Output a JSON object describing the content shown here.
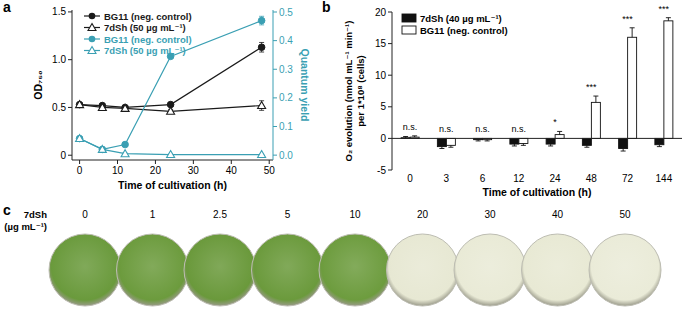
{
  "chart_data": [
    {
      "label": "a",
      "type": "line",
      "x_label": "Time of cultivation (h)",
      "y_label": "OD₇₅₀",
      "y2_label": "Quantum yield",
      "x": [
        0,
        6,
        12,
        24,
        48
      ],
      "xlim": [
        -2,
        51
      ],
      "xticks": [
        0,
        10,
        20,
        30,
        40,
        50
      ],
      "ylim": [
        -0.05,
        1.52
      ],
      "yticks": [
        0,
        0.5,
        {
          "value": 1,
          "label": "1.0"
        },
        1.5
      ],
      "y2lim": [
        -0.017,
        0.507
      ],
      "y2ticks": [
        {
          "value": 0,
          "label": "0.0"
        },
        0.1,
        0.2,
        0.3,
        0.4,
        0.5
      ],
      "legend": "upper left",
      "series": [
        {
          "name": "BG11 (neg. control)",
          "color": "#1a1a1a",
          "marker": "circle",
          "line_style": "solid",
          "values": [
            0.53,
            0.52,
            0.5,
            0.53,
            1.13
          ],
          "errors": [
            0.02,
            0.01,
            0.01,
            0.02,
            0.05
          ]
        },
        {
          "name": "7dSh (50 µg mL⁻¹)",
          "color": "#1a1a1a",
          "marker": "open-triangle",
          "line_style": "solid",
          "values": [
            0.53,
            0.5,
            0.49,
            0.46,
            0.52
          ],
          "errors": [
            0.01,
            0.01,
            0.01,
            0.02,
            0.05
          ]
        },
        {
          "name": "BG11 (neg. control)",
          "color": "#3a9fb3",
          "marker": "circle",
          "line_style": "solid",
          "axis": "y2",
          "values": [
            0.058,
            0.02,
            0.037,
            0.345,
            0.47
          ],
          "errors": [
            0.003,
            0.003,
            0.003,
            0.005,
            0.015
          ]
        },
        {
          "name": "7dSh (50 µg mL⁻¹)",
          "color": "#3a9fb3",
          "marker": "open-triangle",
          "line_style": "solid",
          "axis": "y2",
          "values": [
            0.058,
            0.02,
            0.005,
            0.002,
            0.002
          ],
          "errors": [
            0.003,
            0.003,
            0.002,
            0.001,
            0.001
          ]
        }
      ]
    },
    {
      "label": "b",
      "type": "bar",
      "x_label": "Time of cultivation (h)",
      "y_label_lines": [
        "O₂ evolution (nmol mL⁻¹ min⁻¹)",
        "per 1*10⁸ (cells)"
      ],
      "categories": [
        "0",
        "3",
        "6",
        "12",
        "24",
        "48",
        "72",
        "144"
      ],
      "ylim": [
        -5,
        20
      ],
      "yticks": [
        -5,
        0,
        5,
        10,
        15,
        20
      ],
      "legend": "upper left",
      "significance": [
        "n.s.",
        "n.s.",
        "n.s.",
        "n.s.",
        "*",
        "***",
        "***",
        "***"
      ],
      "series": [
        {
          "name": "7dSh (40 µg mL⁻¹)",
          "color": "#111111",
          "values": [
            0.1,
            -1.3,
            -0.2,
            -0.9,
            -0.9,
            -1.1,
            -1.6,
            -1.0
          ],
          "errors": [
            0.2,
            0.3,
            0.2,
            0.3,
            0.3,
            0.3,
            0.4,
            0.3
          ]
        },
        {
          "name": "BG11 (neg. control)",
          "color": "#ffffff",
          "values": [
            0.2,
            -1.1,
            -0.2,
            -0.8,
            0.6,
            5.7,
            16.0,
            18.6
          ],
          "errors": [
            0.2,
            0.3,
            0.2,
            0.3,
            0.5,
            1.0,
            1.5,
            0.5
          ]
        }
      ]
    }
  ],
  "panel_c": {
    "label": "c",
    "title_lines": [
      "7dSh",
      "(µg mL⁻¹)"
    ],
    "wells": [
      {
        "concentration": 0,
        "color": "#6a9a3c"
      },
      {
        "concentration": 1,
        "color": "#6c9b3d"
      },
      {
        "concentration": 2.5,
        "color": "#6a993b"
      },
      {
        "concentration": 5,
        "color": "#6b9a3c"
      },
      {
        "concentration": 10,
        "color": "#6d9c3e"
      },
      {
        "concentration": 20,
        "color": "#e7e8d3"
      },
      {
        "concentration": 30,
        "color": "#e9ead6"
      },
      {
        "concentration": 40,
        "color": "#e8e9d4"
      },
      {
        "concentration": 50,
        "color": "#eaebd8"
      }
    ]
  }
}
